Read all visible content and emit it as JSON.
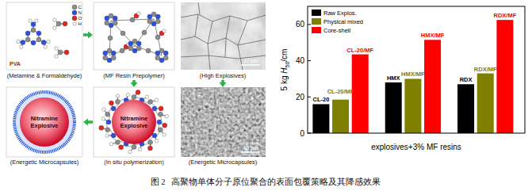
{
  "chart_data": {
    "type": "bar",
    "xlabel": "explosives+3% MF resins",
    "ylabel": {
      "prefix": "5 kg ",
      "symbol": "H",
      "subscript": "50",
      "suffix": "/cm"
    },
    "categories": [
      null,
      null,
      null
    ],
    "series": [
      {
        "name": "Raw Explos.",
        "color": "#000000",
        "values": [
          16,
          28,
          27
        ],
        "annotations": [
          "CL-20",
          "HMX",
          "RDX"
        ]
      },
      {
        "name": "Physical mixed",
        "color": "#808000",
        "values": [
          18.5,
          30,
          33
        ],
        "annotations": [
          "CL-20/MF",
          "HMX/MF",
          "RDX/MF"
        ]
      },
      {
        "name": "Core-shell",
        "color": "#ff0000",
        "values": [
          43.5,
          51.5,
          62.5
        ],
        "annotations": [
          "CL-20/MF",
          "HMX/MF",
          "RDX/MF"
        ]
      }
    ],
    "ylim": [
      0,
      70
    ],
    "yticks": [
      0,
      20,
      40,
      60
    ],
    "legend": "upper left",
    "grid": false
  },
  "diagram": {
    "panels": [
      {
        "label": "(Melamine & Formaldehyde)"
      },
      {
        "label": "(MF Resin Prepolymer)"
      },
      {
        "label": "(High Explosives)",
        "scale_bar": "10 μm"
      },
      {
        "label": "(Energetic Microcapsules)",
        "core": [
          "Nitramine",
          "Explosive"
        ]
      },
      {
        "label": "(In situ polymerization)",
        "core": [
          "Nitramine",
          "Explosive"
        ]
      },
      {
        "label": "(Energetic Microcapsules)",
        "scale_bar": "10 μm"
      }
    ],
    "atoms": [
      "C",
      "N",
      "O",
      "H"
    ],
    "reagent": "PVA"
  },
  "caption": "图 2   高聚物单体分子原位聚合的表面包覆策略及其降感效果"
}
